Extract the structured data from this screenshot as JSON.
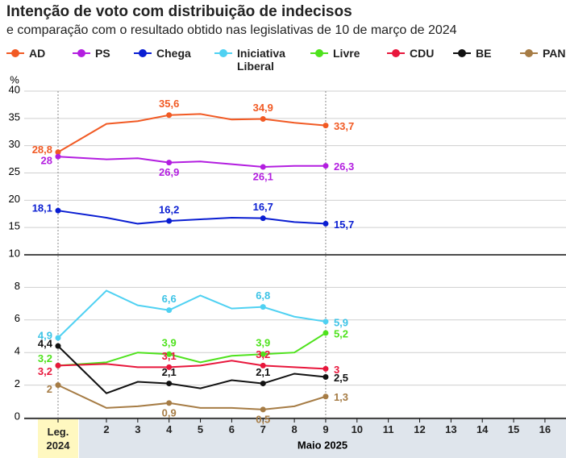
{
  "chart_data": {
    "type": "line",
    "title": "Intenção de voto com distribuição de indecisos",
    "subtitle": "e comparação com o resultado obtido nas legislativas de 10 de março de 2024",
    "y_unit": "%",
    "x_group_label": "Maio 2025",
    "categories": [
      "Leg. 2024",
      "2",
      "3",
      "4",
      "5",
      "6",
      "7",
      "8",
      "9",
      "10",
      "11",
      "12",
      "13",
      "14",
      "15",
      "16"
    ],
    "panels": {
      "upper": {
        "ylim": [
          10,
          40
        ],
        "yticks": [
          10,
          15,
          20,
          25,
          30,
          35,
          40
        ]
      },
      "lower": {
        "ylim": [
          0,
          10
        ],
        "yticks": [
          0,
          2,
          4,
          6,
          8
        ]
      }
    },
    "grid": true,
    "series": [
      {
        "name": "AD",
        "color": "#f15a24",
        "panel": "upper",
        "values": [
          28.8,
          34.0,
          34.5,
          35.6,
          35.8,
          34.8,
          34.9,
          34.2,
          33.7,
          null,
          null,
          null,
          null,
          null,
          null,
          null
        ],
        "value_labels": [
          "28,8",
          null,
          null,
          "35,6",
          null,
          null,
          "34,9",
          null,
          "33,7",
          null,
          null,
          null,
          null,
          null,
          null,
          null
        ]
      },
      {
        "name": "PS",
        "color": "#b31ee0",
        "panel": "upper",
        "values": [
          28,
          27.5,
          27.7,
          26.9,
          27.1,
          26.6,
          26.1,
          26.3,
          26.3,
          null,
          null,
          null,
          null,
          null,
          null,
          null
        ],
        "value_labels": [
          "28",
          null,
          null,
          "26,9",
          null,
          null,
          "26,1",
          null,
          "26,3",
          null,
          null,
          null,
          null,
          null,
          null,
          null
        ]
      },
      {
        "name": "Chega",
        "color": "#0a1ed2",
        "panel": "upper",
        "values": [
          18.1,
          16.8,
          15.7,
          16.2,
          16.5,
          16.8,
          16.7,
          16.0,
          15.7,
          null,
          null,
          null,
          null,
          null,
          null,
          null
        ],
        "value_labels": [
          "18,1",
          null,
          null,
          "16,2",
          null,
          null,
          "16,7",
          null,
          "15,7",
          null,
          null,
          null,
          null,
          null,
          null,
          null
        ]
      },
      {
        "name": "Iniciativa Liberal",
        "color": "#4fd1f2",
        "panel": "lower",
        "values": [
          4.9,
          7.8,
          6.9,
          6.6,
          7.5,
          6.7,
          6.8,
          6.2,
          5.9,
          null,
          null,
          null,
          null,
          null,
          null,
          null
        ],
        "value_labels": [
          "4,9",
          null,
          null,
          "6,6",
          null,
          null,
          "6,8",
          null,
          "5,9",
          null,
          null,
          null,
          null,
          null,
          null,
          null
        ]
      },
      {
        "name": "Livre",
        "color": "#4ee21c",
        "panel": "lower",
        "values": [
          3.2,
          3.4,
          4.0,
          3.9,
          3.4,
          3.8,
          3.9,
          4.0,
          5.2,
          null,
          null,
          null,
          null,
          null,
          null,
          null
        ],
        "value_labels": [
          "3,2",
          null,
          null,
          "3,9",
          null,
          null,
          "3,9",
          null,
          "5,2",
          null,
          null,
          null,
          null,
          null,
          null,
          null
        ]
      },
      {
        "name": "CDU",
        "color": "#e8173c",
        "panel": "lower",
        "values": [
          3.2,
          3.3,
          3.1,
          3.1,
          3.2,
          3.5,
          3.2,
          3.1,
          3.0,
          null,
          null,
          null,
          null,
          null,
          null,
          null
        ],
        "value_labels": [
          "3,2",
          null,
          null,
          "3,1",
          null,
          null,
          "3,2",
          null,
          "3",
          null,
          null,
          null,
          null,
          null,
          null,
          null
        ]
      },
      {
        "name": "BE",
        "color": "#111111",
        "panel": "lower",
        "values": [
          4.4,
          1.5,
          2.2,
          2.1,
          1.8,
          2.3,
          2.1,
          2.7,
          2.5,
          null,
          null,
          null,
          null,
          null,
          null,
          null
        ],
        "value_labels": [
          "4,4",
          null,
          null,
          "2,1",
          null,
          null,
          "2,1",
          null,
          "2,5",
          null,
          null,
          null,
          null,
          null,
          null,
          null
        ]
      },
      {
        "name": "PAN",
        "color": "#a67c45",
        "panel": "lower",
        "values": [
          2.0,
          0.6,
          0.7,
          0.9,
          0.6,
          0.6,
          0.5,
          0.7,
          1.3,
          null,
          null,
          null,
          null,
          null,
          null,
          null
        ],
        "value_labels": [
          "2",
          null,
          null,
          "0,9",
          null,
          null,
          "0,5",
          null,
          "1,3",
          null,
          null,
          null,
          null,
          null,
          null,
          null
        ]
      }
    ]
  }
}
